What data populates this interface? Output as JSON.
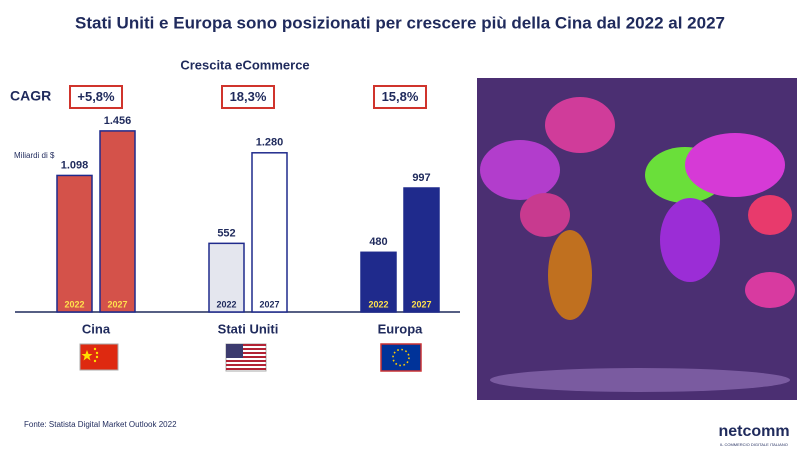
{
  "chart_data": {
    "type": "bar",
    "title": "Stati Uniti e Europa sono posizionati per crescere più della Cina dal 2022 al 2027",
    "subtitle": "Crescita eCommerce",
    "y_label": "Miliardi di $",
    "cagr_title": "CAGR",
    "cagr_labels": [
      "+5,8%",
      "18,3%",
      "15,8%"
    ],
    "categories": [
      "Cina",
      "Stati Uniti",
      "Europa"
    ],
    "series": [
      {
        "name": "2022",
        "values": [
          1098,
          552,
          480
        ],
        "value_labels": [
          "1.098",
          "552",
          "480"
        ],
        "colors": [
          "#d4524a",
          "#e4e6ee",
          "#1f2a8c"
        ]
      },
      {
        "name": "2027",
        "values": [
          1456,
          1280,
          997
        ],
        "value_labels": [
          "1.456",
          "1.280",
          "997"
        ],
        "colors": [
          "#d4524a",
          "#ffffff",
          "#1f2a8c"
        ]
      }
    ],
    "ylim": [
      0,
      1600
    ],
    "source": "Fonte: Statista Digital Market Outlook 2022",
    "logo": "netcomm",
    "logo_tagline": "IL COMMERCIO DIGITALE ITALIANO"
  }
}
